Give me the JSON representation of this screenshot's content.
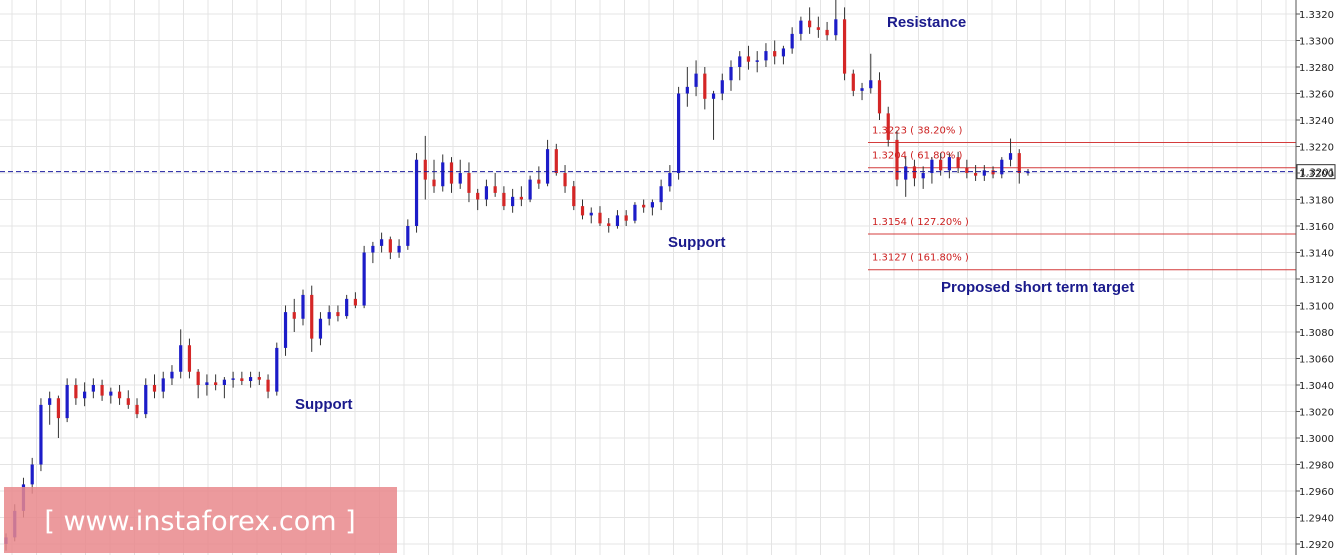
{
  "chart_data": {
    "type": "candlestick",
    "y_axis": {
      "range": [
        1.2915,
        1.333
      ],
      "ticks": [
        "1.3320",
        "1.3300",
        "1.3280",
        "1.3260",
        "1.3240",
        "1.3220",
        "1.3200",
        "1.3180",
        "1.3160",
        "1.3140",
        "1.3120",
        "1.3100",
        "1.3080",
        "1.3060",
        "1.3040",
        "1.3020",
        "1.3000",
        "1.2980",
        "1.2960",
        "1.2940",
        "1.2920"
      ],
      "tick_values": [
        1.332,
        1.33,
        1.328,
        1.326,
        1.324,
        1.322,
        1.32,
        1.318,
        1.316,
        1.314,
        1.312,
        1.31,
        1.308,
        1.306,
        1.304,
        1.302,
        1.3,
        1.298,
        1.296,
        1.294,
        1.292
      ]
    },
    "current_price": {
      "label": "1.3201",
      "value": 1.3201
    },
    "fib_levels": [
      {
        "label": "1.3223  ( 38.20% )",
        "value": 1.3223
      },
      {
        "label": "1.3204  ( 61.80% )",
        "value": 1.3204
      },
      {
        "label": "1.3154  ( 127.20% )",
        "value": 1.3154
      },
      {
        "label": "1.3127  ( 161.80% )",
        "value": 1.3127
      }
    ],
    "annotations": [
      "Resistance",
      "Support",
      "Support",
      "Proposed short term target"
    ],
    "candles": [
      [
        1.292,
        1.2928,
        1.2915,
        1.2925
      ],
      [
        1.2925,
        1.295,
        1.2922,
        1.2945
      ],
      [
        1.2945,
        1.297,
        1.294,
        1.2965
      ],
      [
        1.2965,
        1.2985,
        1.2958,
        1.298
      ],
      [
        1.298,
        1.303,
        1.2975,
        1.3025
      ],
      [
        1.3025,
        1.3035,
        1.301,
        1.303
      ],
      [
        1.303,
        1.3032,
        1.3,
        1.3015
      ],
      [
        1.3015,
        1.3045,
        1.3012,
        1.304
      ],
      [
        1.304,
        1.3045,
        1.3025,
        1.303
      ],
      [
        1.303,
        1.3042,
        1.3024,
        1.3035
      ],
      [
        1.3035,
        1.3045,
        1.303,
        1.304
      ],
      [
        1.304,
        1.3044,
        1.3028,
        1.3032
      ],
      [
        1.3032,
        1.3038,
        1.3026,
        1.3035
      ],
      [
        1.3035,
        1.304,
        1.3025,
        1.303
      ],
      [
        1.303,
        1.3036,
        1.3022,
        1.3025
      ],
      [
        1.3025,
        1.303,
        1.3015,
        1.3018
      ],
      [
        1.3018,
        1.3045,
        1.3015,
        1.304
      ],
      [
        1.304,
        1.3048,
        1.303,
        1.3035
      ],
      [
        1.3035,
        1.305,
        1.303,
        1.3045
      ],
      [
        1.3045,
        1.3055,
        1.304,
        1.305
      ],
      [
        1.305,
        1.3082,
        1.3045,
        1.307
      ],
      [
        1.307,
        1.3075,
        1.3045,
        1.305
      ],
      [
        1.305,
        1.3052,
        1.303,
        1.304
      ],
      [
        1.304,
        1.3048,
        1.3032,
        1.3042
      ],
      [
        1.3042,
        1.3048,
        1.3036,
        1.304
      ],
      [
        1.304,
        1.3046,
        1.303,
        1.3044
      ],
      [
        1.3044,
        1.305,
        1.3038,
        1.3045
      ],
      [
        1.3045,
        1.305,
        1.304,
        1.3043
      ],
      [
        1.3043,
        1.305,
        1.3038,
        1.3046
      ],
      [
        1.3046,
        1.305,
        1.304,
        1.3044
      ],
      [
        1.3044,
        1.3048,
        1.303,
        1.3035
      ],
      [
        1.3035,
        1.3072,
        1.3032,
        1.3068
      ],
      [
        1.3068,
        1.31,
        1.3062,
        1.3095
      ],
      [
        1.3095,
        1.3105,
        1.308,
        1.309
      ],
      [
        1.309,
        1.3112,
        1.3085,
        1.3108
      ],
      [
        1.3108,
        1.3115,
        1.3065,
        1.3075
      ],
      [
        1.3075,
        1.3095,
        1.307,
        1.309
      ],
      [
        1.309,
        1.31,
        1.3085,
        1.3095
      ],
      [
        1.3095,
        1.31,
        1.3088,
        1.3092
      ],
      [
        1.3092,
        1.3108,
        1.309,
        1.3105
      ],
      [
        1.3105,
        1.311,
        1.3098,
        1.31
      ],
      [
        1.31,
        1.3145,
        1.3098,
        1.314
      ],
      [
        1.314,
        1.3148,
        1.3132,
        1.3145
      ],
      [
        1.3145,
        1.3155,
        1.314,
        1.315
      ],
      [
        1.315,
        1.3152,
        1.3135,
        1.314
      ],
      [
        1.314,
        1.315,
        1.3136,
        1.3145
      ],
      [
        1.3145,
        1.3165,
        1.3142,
        1.316
      ],
      [
        1.316,
        1.3215,
        1.3155,
        1.321
      ],
      [
        1.321,
        1.3228,
        1.318,
        1.3195
      ],
      [
        1.3195,
        1.321,
        1.3185,
        1.319
      ],
      [
        1.319,
        1.3214,
        1.3186,
        1.3208
      ],
      [
        1.3208,
        1.3212,
        1.3185,
        1.3192
      ],
      [
        1.3192,
        1.321,
        1.3188,
        1.32
      ],
      [
        1.32,
        1.3208,
        1.3178,
        1.3185
      ],
      [
        1.3185,
        1.3188,
        1.3172,
        1.318
      ],
      [
        1.318,
        1.3195,
        1.3175,
        1.319
      ],
      [
        1.319,
        1.32,
        1.3182,
        1.3185
      ],
      [
        1.3185,
        1.319,
        1.3172,
        1.3175
      ],
      [
        1.3175,
        1.3188,
        1.317,
        1.3182
      ],
      [
        1.3182,
        1.319,
        1.3175,
        1.318
      ],
      [
        1.318,
        1.3198,
        1.3178,
        1.3195
      ],
      [
        1.3195,
        1.3205,
        1.3188,
        1.3192
      ],
      [
        1.3192,
        1.3225,
        1.319,
        1.3218
      ],
      [
        1.3218,
        1.3222,
        1.3198,
        1.32
      ],
      [
        1.32,
        1.3206,
        1.3185,
        1.319
      ],
      [
        1.319,
        1.3194,
        1.3172,
        1.3175
      ],
      [
        1.3175,
        1.318,
        1.3165,
        1.3168
      ],
      [
        1.3168,
        1.3174,
        1.3162,
        1.317
      ],
      [
        1.317,
        1.3175,
        1.316,
        1.3162
      ],
      [
        1.3162,
        1.3166,
        1.3155,
        1.316
      ],
      [
        1.316,
        1.3172,
        1.3158,
        1.3168
      ],
      [
        1.3168,
        1.3172,
        1.316,
        1.3164
      ],
      [
        1.3164,
        1.3178,
        1.3162,
        1.3176
      ],
      [
        1.3176,
        1.318,
        1.317,
        1.3174
      ],
      [
        1.3174,
        1.318,
        1.3168,
        1.3178
      ],
      [
        1.3178,
        1.3195,
        1.3172,
        1.319
      ],
      [
        1.319,
        1.3206,
        1.3186,
        1.32
      ],
      [
        1.32,
        1.3265,
        1.3195,
        1.326
      ],
      [
        1.326,
        1.328,
        1.325,
        1.3265
      ],
      [
        1.3265,
        1.3285,
        1.3258,
        1.3275
      ],
      [
        1.3275,
        1.328,
        1.3248,
        1.3256
      ],
      [
        1.3256,
        1.3262,
        1.3225,
        1.326
      ],
      [
        1.326,
        1.3275,
        1.3255,
        1.327
      ],
      [
        1.327,
        1.3285,
        1.3262,
        1.328
      ],
      [
        1.328,
        1.3292,
        1.327,
        1.3288
      ],
      [
        1.3288,
        1.3296,
        1.3278,
        1.3284
      ],
      [
        1.3284,
        1.3292,
        1.3276,
        1.3285
      ],
      [
        1.3285,
        1.3298,
        1.328,
        1.3292
      ],
      [
        1.3292,
        1.33,
        1.3282,
        1.3288
      ],
      [
        1.3288,
        1.3296,
        1.3282,
        1.3294
      ],
      [
        1.3294,
        1.331,
        1.329,
        1.3305
      ],
      [
        1.3305,
        1.3318,
        1.33,
        1.3315
      ],
      [
        1.3315,
        1.3325,
        1.3305,
        1.331
      ],
      [
        1.331,
        1.3318,
        1.3302,
        1.3308
      ],
      [
        1.3308,
        1.3314,
        1.33,
        1.3304
      ],
      [
        1.3304,
        1.3332,
        1.33,
        1.3316
      ],
      [
        1.3316,
        1.3325,
        1.327,
        1.3275
      ],
      [
        1.3275,
        1.3278,
        1.3258,
        1.3262
      ],
      [
        1.3262,
        1.3268,
        1.3255,
        1.3264
      ],
      [
        1.3264,
        1.329,
        1.326,
        1.327
      ],
      [
        1.327,
        1.3276,
        1.324,
        1.3245
      ],
      [
        1.3245,
        1.325,
        1.322,
        1.3225
      ],
      [
        1.3225,
        1.3232,
        1.319,
        1.3195
      ],
      [
        1.3195,
        1.3212,
        1.3182,
        1.3205
      ],
      [
        1.3205,
        1.321,
        1.319,
        1.3196
      ],
      [
        1.3196,
        1.3205,
        1.3188,
        1.32
      ],
      [
        1.32,
        1.3212,
        1.3192,
        1.321
      ],
      [
        1.321,
        1.3215,
        1.3198,
        1.3202
      ],
      [
        1.3202,
        1.3215,
        1.3196,
        1.3212
      ],
      [
        1.3212,
        1.3216,
        1.32,
        1.3204
      ],
      [
        1.3204,
        1.321,
        1.3196,
        1.32
      ],
      [
        1.32,
        1.3206,
        1.3194,
        1.3198
      ],
      [
        1.3198,
        1.3206,
        1.3194,
        1.3202
      ],
      [
        1.3202,
        1.3205,
        1.3196,
        1.3199
      ],
      [
        1.3199,
        1.3212,
        1.3196,
        1.321
      ],
      [
        1.321,
        1.3226,
        1.3205,
        1.3215
      ],
      [
        1.3215,
        1.3218,
        1.3192,
        1.32
      ],
      [
        1.32,
        1.3203,
        1.3198,
        1.3201
      ]
    ]
  },
  "colors": {
    "bull": "#1c1cc8",
    "bear": "#d42626",
    "grid": "#e4e4e4",
    "fib_line": "#d43c3c",
    "price_line": "#1c1ca0",
    "annotation": "#1a1a8c",
    "watermark_bg": "#e9888c"
  },
  "watermark": {
    "text": "[ www.instaforex.com ]"
  }
}
